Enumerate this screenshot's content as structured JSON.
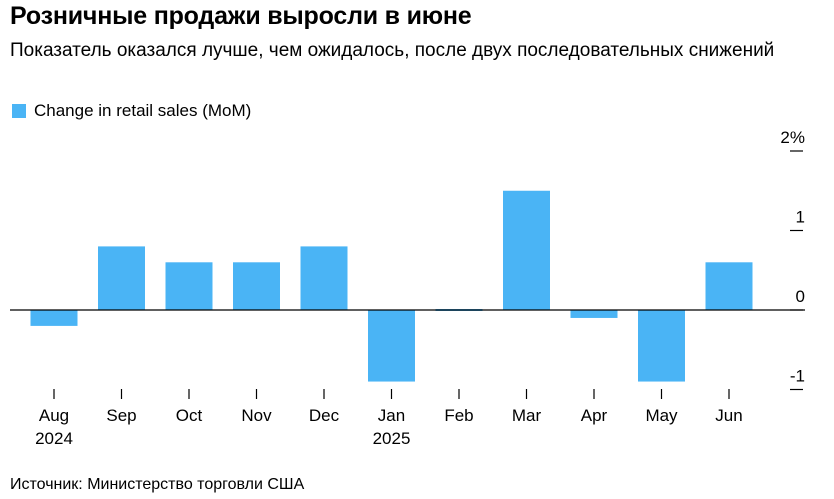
{
  "title": "Розничные продажи выросли в июне",
  "subtitle": "Показатель оказался лучше, чем ожидалось, после двух последовательных снижений",
  "source": "Источник: Министерство торговли США",
  "colors": {
    "bar": "#4ab4f5",
    "axis": "#000000"
  },
  "chart_data": {
    "type": "bar",
    "categories": [
      "Aug",
      "Sep",
      "Oct",
      "Nov",
      "Dec",
      "Jan",
      "Feb",
      "Mar",
      "Apr",
      "May",
      "Jun"
    ],
    "category_sublabels": [
      "2024",
      "",
      "",
      "",
      "",
      "2025",
      "",
      "",
      "",
      "",
      ""
    ],
    "series": [
      {
        "name": "Change in retail sales (MoM)",
        "values": [
          -0.2,
          0.8,
          0.6,
          0.6,
          0.8,
          -0.9,
          0.0,
          1.5,
          -0.1,
          -0.9,
          0.6
        ]
      }
    ],
    "y_ticks": [
      "2%",
      "1",
      "0",
      "-1"
    ],
    "y_tick_values": [
      2,
      1,
      0,
      -1
    ],
    "ylim": [
      -1,
      2
    ],
    "xlabel": "",
    "ylabel": "",
    "legend_position": "top-left",
    "grid": false
  }
}
